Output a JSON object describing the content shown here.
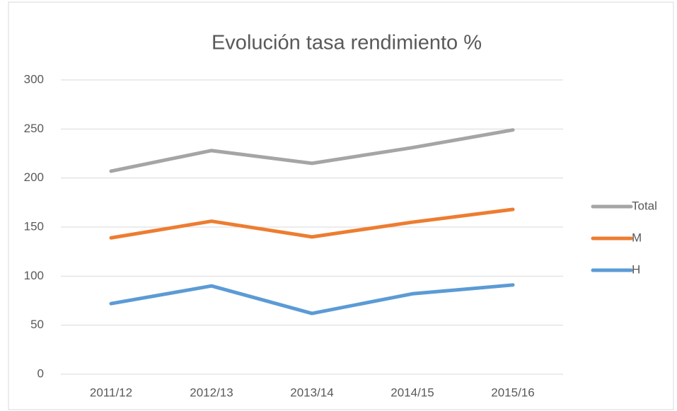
{
  "chart_data": {
    "type": "line",
    "title": "Evolución tasa rendimiento %",
    "categories": [
      "2011/12",
      "2012/13",
      "2013/14",
      "2014/15",
      "2015/16"
    ],
    "series": [
      {
        "name": "Total",
        "color": "#a5a5a5",
        "values": [
          207,
          228,
          215,
          231,
          249
        ]
      },
      {
        "name": "M",
        "color": "#ed7d31",
        "values": [
          139,
          156,
          140,
          155,
          168
        ]
      },
      {
        "name": "H",
        "color": "#5b9bd5",
        "values": [
          72,
          90,
          62,
          82,
          91
        ]
      }
    ],
    "ylim": [
      0,
      300
    ],
    "yticks": [
      0,
      50,
      100,
      150,
      200,
      250,
      300
    ],
    "grid": true,
    "legend": "right"
  }
}
